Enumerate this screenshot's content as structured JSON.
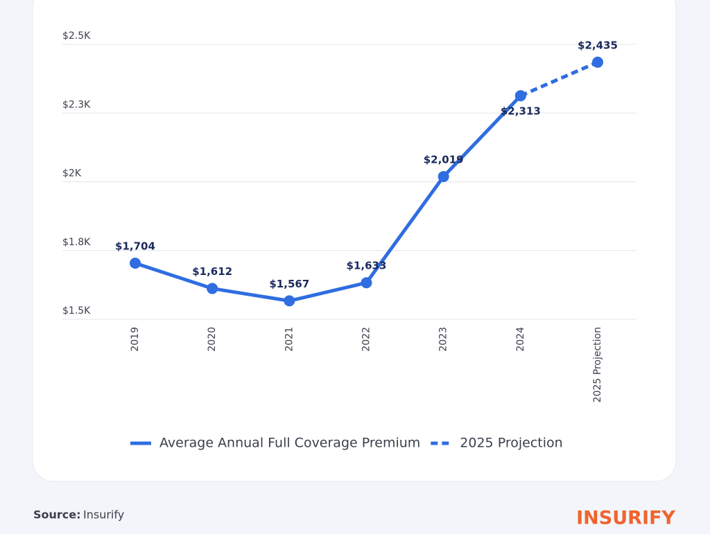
{
  "chart_data": {
    "type": "line",
    "categories": [
      "2019",
      "2020",
      "2021",
      "2022",
      "2023",
      "2024",
      "2025 Projection"
    ],
    "series": [
      {
        "name": "Average Annual Full Coverage Premium",
        "color": "#2f6de0",
        "dash": false,
        "values": [
          1704,
          1612,
          1567,
          1633,
          2019,
          2313,
          null
        ]
      },
      {
        "name": "2025 Projection",
        "color": "#2f6de0",
        "dash": true,
        "values": [
          null,
          null,
          null,
          null,
          null,
          2313,
          2435
        ]
      }
    ],
    "value_labels": [
      "$1,704",
      "$1,612",
      "$1,567",
      "$1,633",
      "$2,019",
      "$2,313",
      "$2,435"
    ],
    "ylim": [
      1500,
      2500
    ],
    "yticks": [
      {
        "value": 1500,
        "label": "$1.5K"
      },
      {
        "value": 1750,
        "label": "$1.8K"
      },
      {
        "value": 2000,
        "label": "$2K"
      },
      {
        "value": 2250,
        "label": "$2.3K"
      },
      {
        "value": 2500,
        "label": "$2.5K"
      }
    ],
    "grid": true,
    "legend": "bottom"
  },
  "footer": {
    "source_label": "Source:",
    "source": "Insurify",
    "logo": "INSURIFY"
  }
}
